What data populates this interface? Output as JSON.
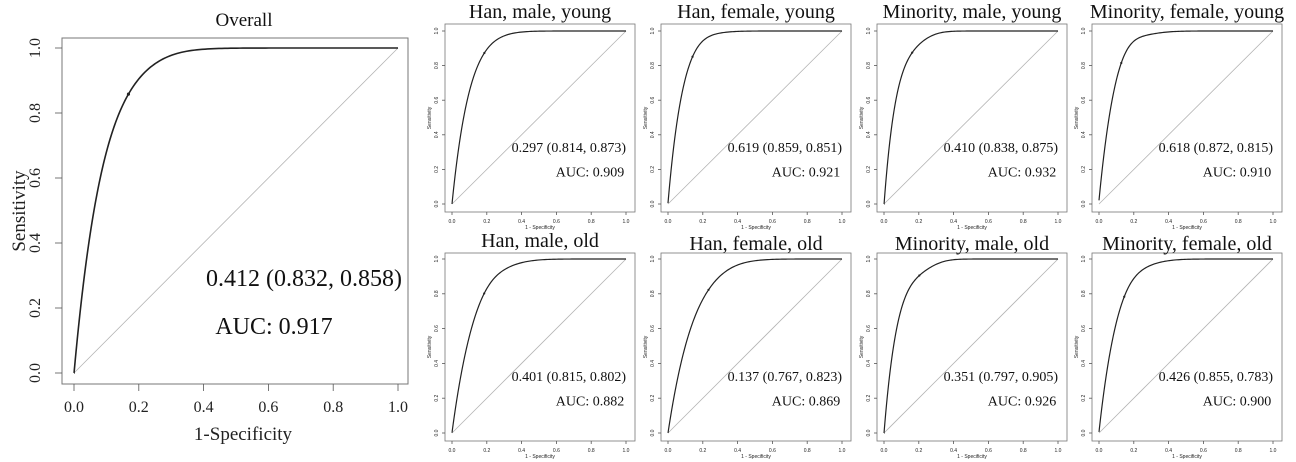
{
  "colors": {
    "curve": "#222222",
    "diagonal": "#b4b4b4",
    "axis": "#555555",
    "frame": "#777777"
  },
  "chart_data": [
    {
      "type": "line",
      "title": "Overall",
      "xlabel": "1-Specificity",
      "ylabel": "Sensitivity",
      "xlim": [
        0,
        1
      ],
      "ylim": [
        0,
        1
      ],
      "xticks": [
        "0.0",
        "0.2",
        "0.4",
        "0.6",
        "0.8",
        "1.0"
      ],
      "yticks": [
        "0.0",
        "0.2",
        "0.4",
        "0.6",
        "0.8",
        "1.0"
      ],
      "threshold_label": "0.412 (0.832, 0.858)",
      "auc_label": "AUC: 0.917",
      "auc": 0.917,
      "threshold": {
        "x": 0.168,
        "y": 0.858
      },
      "diagonal": [
        [
          0,
          0
        ],
        [
          1,
          1
        ]
      ]
    },
    {
      "type": "line",
      "title": "Han, male, young",
      "xlabel": "1 - Specificity",
      "ylabel": "Sensitivity",
      "xlim": [
        0,
        1
      ],
      "ylim": [
        0,
        1
      ],
      "xticks": [
        "0.0",
        "0.2",
        "0.4",
        "0.6",
        "0.8",
        "1.0"
      ],
      "yticks": [
        "0.0",
        "0.2",
        "0.4",
        "0.6",
        "0.8",
        "1.0"
      ],
      "threshold_label": "0.297 (0.814, 0.873)",
      "auc_label": "AUC: 0.909",
      "auc": 0.909,
      "threshold": {
        "x": 0.186,
        "y": 0.873
      },
      "diagonal": [
        [
          0,
          0
        ],
        [
          1,
          1
        ]
      ]
    },
    {
      "type": "line",
      "title": "Han, female, young",
      "xlabel": "1 - Specificity",
      "ylabel": "Sensitivity",
      "xlim": [
        0,
        1
      ],
      "ylim": [
        0,
        1
      ],
      "xticks": [
        "0.0",
        "0.2",
        "0.4",
        "0.6",
        "0.8",
        "1.0"
      ],
      "yticks": [
        "0.0",
        "0.2",
        "0.4",
        "0.6",
        "0.8",
        "1.0"
      ],
      "threshold_label": "0.619 (0.859, 0.851)",
      "auc_label": "AUC: 0.921",
      "auc": 0.921,
      "threshold": {
        "x": 0.141,
        "y": 0.851
      },
      "diagonal": [
        [
          0,
          0
        ],
        [
          1,
          1
        ]
      ]
    },
    {
      "type": "line",
      "title": "Minority, male, young",
      "xlabel": "1 - Specificity",
      "ylabel": "Sensitivity",
      "xlim": [
        0,
        1
      ],
      "ylim": [
        0,
        1
      ],
      "xticks": [
        "0.0",
        "0.2",
        "0.4",
        "0.6",
        "0.8",
        "1.0"
      ],
      "yticks": [
        "0.0",
        "0.2",
        "0.4",
        "0.6",
        "0.8",
        "1.0"
      ],
      "threshold_label": "0.410 (0.838, 0.875)",
      "auc_label": "AUC: 0.932",
      "auc": 0.932,
      "threshold": {
        "x": 0.162,
        "y": 0.875
      },
      "diagonal": [
        [
          0,
          0
        ],
        [
          1,
          1
        ]
      ]
    },
    {
      "type": "line",
      "title": "Minority, female, young",
      "xlabel": "1 - Specificity",
      "ylabel": "Sensitivity",
      "xlim": [
        0,
        1
      ],
      "ylim": [
        0,
        1
      ],
      "xticks": [
        "0.0",
        "0.2",
        "0.4",
        "0.6",
        "0.8",
        "1.0"
      ],
      "yticks": [
        "0.0",
        "0.2",
        "0.4",
        "0.6",
        "0.8",
        "1.0"
      ],
      "threshold_label": "0.618 (0.872, 0.815)",
      "auc_label": "AUC: 0.910",
      "auc": 0.91,
      "threshold": {
        "x": 0.128,
        "y": 0.815
      },
      "diagonal": [
        [
          0,
          0
        ],
        [
          1,
          1
        ]
      ]
    },
    {
      "type": "line",
      "title": "Han, male, old",
      "xlabel": "1 - Specificity",
      "ylabel": "Sensitivity",
      "xlim": [
        0,
        1
      ],
      "ylim": [
        0,
        1
      ],
      "xticks": [
        "0.0",
        "0.2",
        "0.4",
        "0.6",
        "0.8",
        "1.0"
      ],
      "yticks": [
        "0.0",
        "0.2",
        "0.4",
        "0.6",
        "0.8",
        "1.0"
      ],
      "threshold_label": "0.401 (0.815, 0.802)",
      "auc_label": "AUC: 0.882",
      "auc": 0.882,
      "threshold": {
        "x": 0.185,
        "y": 0.802
      },
      "diagonal": [
        [
          0,
          0
        ],
        [
          1,
          1
        ]
      ]
    },
    {
      "type": "line",
      "title": "Han, female, old",
      "xlabel": "1 - Specificity",
      "ylabel": "Sensitivity",
      "xlim": [
        0,
        1
      ],
      "ylim": [
        0,
        1
      ],
      "xticks": [
        "0.0",
        "0.2",
        "0.4",
        "0.6",
        "0.8",
        "1.0"
      ],
      "yticks": [
        "0.0",
        "0.2",
        "0.4",
        "0.6",
        "0.8",
        "1.0"
      ],
      "threshold_label": "0.137 (0.767, 0.823)",
      "auc_label": "AUC: 0.869",
      "auc": 0.869,
      "threshold": {
        "x": 0.233,
        "y": 0.823
      },
      "diagonal": [
        [
          0,
          0
        ],
        [
          1,
          1
        ]
      ]
    },
    {
      "type": "line",
      "title": "Minority, male, old",
      "xlabel": "1 - Specificity",
      "ylabel": "Sensitivity",
      "xlim": [
        0,
        1
      ],
      "ylim": [
        0,
        1
      ],
      "xticks": [
        "0.0",
        "0.2",
        "0.4",
        "0.6",
        "0.8",
        "1.0"
      ],
      "yticks": [
        "0.0",
        "0.2",
        "0.4",
        "0.6",
        "0.8",
        "1.0"
      ],
      "threshold_label": "0.351 (0.797, 0.905)",
      "auc_label": "AUC: 0.926",
      "auc": 0.926,
      "threshold": {
        "x": 0.203,
        "y": 0.905
      },
      "diagonal": [
        [
          0,
          0
        ],
        [
          1,
          1
        ]
      ]
    },
    {
      "type": "line",
      "title": "Minority, female, old",
      "xlabel": "1 - Specificity",
      "ylabel": "Sensitivity",
      "xlim": [
        0,
        1
      ],
      "ylim": [
        0,
        1
      ],
      "xticks": [
        "0.0",
        "0.2",
        "0.4",
        "0.6",
        "0.8",
        "1.0"
      ],
      "yticks": [
        "0.0",
        "0.2",
        "0.4",
        "0.6",
        "0.8",
        "1.0"
      ],
      "threshold_label": "0.426 (0.855, 0.783)",
      "auc_label": "AUC: 0.900",
      "auc": 0.9,
      "threshold": {
        "x": 0.145,
        "y": 0.783
      },
      "diagonal": [
        [
          0,
          0
        ],
        [
          1,
          1
        ]
      ]
    }
  ]
}
